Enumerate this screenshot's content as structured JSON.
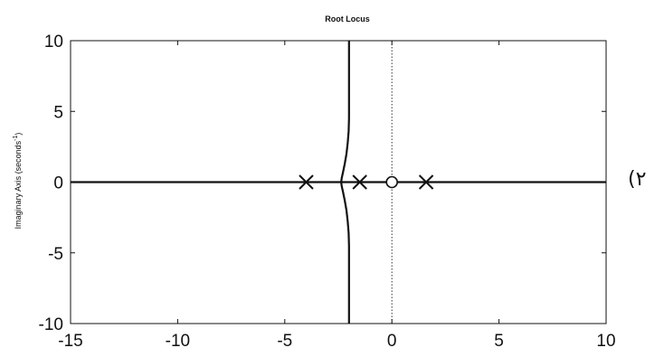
{
  "side_label": "(۲",
  "chart_data": {
    "type": "scatter",
    "title": "Root Locus",
    "xlabel": "",
    "ylabel": "Imaginary Axis (seconds",
    "ylabel_superscript": "-1",
    "ylabel_suffix": ")",
    "xlim": [
      -15,
      10
    ],
    "ylim": [
      -10,
      10
    ],
    "xticks": [
      -15,
      -10,
      -5,
      0,
      5,
      10
    ],
    "yticks": [
      -10,
      -5,
      0,
      5,
      10
    ],
    "grid": false,
    "poles": [
      {
        "re": -4.0,
        "im": 0
      },
      {
        "re": -1.5,
        "im": 0
      },
      {
        "re": 1.6,
        "im": 0
      }
    ],
    "zeros": [
      {
        "re": 0,
        "im": 0
      }
    ],
    "loci": [
      {
        "name": "",
        "x": [
          -15,
          10
        ],
        "y": [
          0,
          0
        ]
      },
      {
        "name": "",
        "x": [
          -2.0,
          -2.0,
          -2.02,
          -2.06,
          -2.12,
          -2.2,
          -2.28,
          -2.34,
          -2.37,
          -2.34,
          -2.28,
          -2.2,
          -2.12,
          -2.06,
          -2.02,
          -2.0,
          -2.0
        ],
        "y": [
          10,
          4.5,
          3.6,
          2.8,
          2.0,
          1.3,
          0.7,
          0.3,
          0,
          -0.3,
          -0.7,
          -1.3,
          -2.0,
          -2.8,
          -3.6,
          -4.5,
          -10
        ]
      }
    ],
    "imaginary_axis_dotted": true,
    "colors": {
      "line": "#111111",
      "marker": "#111111",
      "zero_fill": "#ffffff"
    }
  }
}
